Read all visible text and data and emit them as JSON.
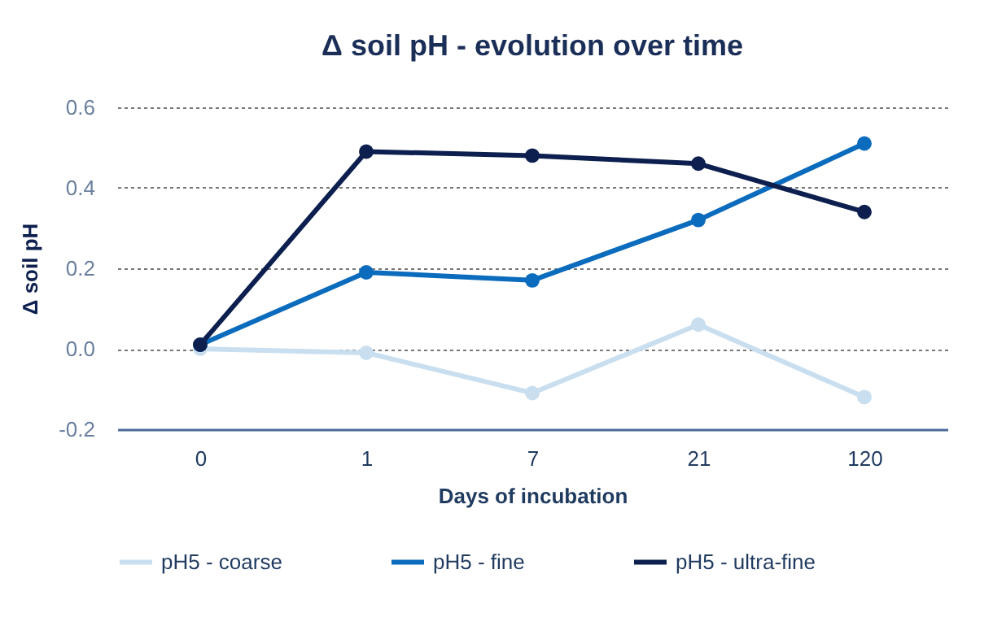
{
  "chart_data": {
    "type": "line",
    "title": "Δ soil pH - evolution over time",
    "xlabel": "Days of incubation",
    "ylabel": "Δ soil pH",
    "categories": [
      "0",
      "1",
      "7",
      "21",
      "120"
    ],
    "series": [
      {
        "name": "pH5 - coarse",
        "color": "#c9dff0",
        "values": [
          0.0,
          -0.01,
          -0.11,
          0.06,
          -0.12
        ]
      },
      {
        "name": "pH5 - fine",
        "color": "#0b6bbd",
        "values": [
          0.01,
          0.19,
          0.17,
          0.32,
          0.51
        ]
      },
      {
        "name": "pH5 - ultra-fine",
        "color": "#0d1f4f",
        "values": [
          0.01,
          0.49,
          0.48,
          0.46,
          0.34
        ]
      }
    ],
    "ylim": [
      -0.2,
      0.6
    ],
    "yticks": [
      {
        "value": -0.2,
        "label": "-0.2"
      },
      {
        "value": 0,
        "label": "0.0"
      },
      {
        "value": 0.2,
        "label": "0.2"
      },
      {
        "value": 0.4,
        "label": "0.4"
      },
      {
        "value": 0.6,
        "label": "0.6"
      }
    ],
    "grid": "y",
    "legend": "bottom",
    "marker": "circle",
    "line_style": "solid"
  }
}
